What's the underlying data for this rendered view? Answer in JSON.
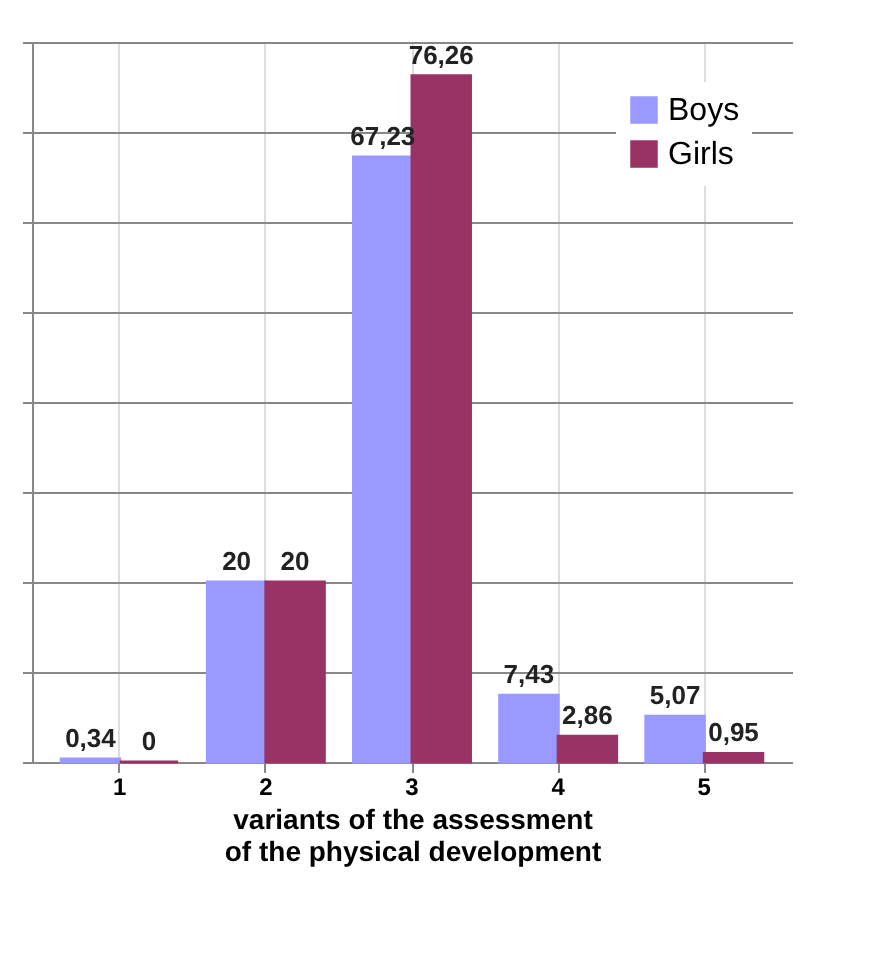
{
  "chart_data": {
    "type": "bar",
    "xlabel": "variants of the  assessment of the physical development",
    "categories": [
      "1",
      "2",
      "3",
      "4",
      "5"
    ],
    "series": [
      {
        "name": "Boys",
        "color": "#9999ff",
        "values": [
          0.34,
          20,
          67.23,
          7.43,
          5.07
        ],
        "value_labels": [
          "0,34",
          "20",
          "67,23",
          "7,43",
          "5,07"
        ]
      },
      {
        "name": "Girls",
        "color": "#993366",
        "values": [
          0,
          20,
          76.26,
          2.86,
          0.95
        ],
        "value_labels": [
          "0",
          "20",
          "76,26",
          "2,86",
          "0,95"
        ]
      }
    ],
    "ylim": [
      0,
      80
    ],
    "yticks": [
      {
        "value": 0,
        "label": null
      },
      {
        "value": 10,
        "label": null
      },
      {
        "value": 20,
        "label": null
      },
      {
        "value": 30,
        "label": null
      },
      {
        "value": 40,
        "label": null
      },
      {
        "value": 50,
        "label": null
      },
      {
        "value": 60,
        "label": null
      },
      {
        "value": 70,
        "label": null
      },
      {
        "value": 80,
        "label": null
      }
    ],
    "tick_labels": "x",
    "grid": true,
    "legend": "top right"
  }
}
